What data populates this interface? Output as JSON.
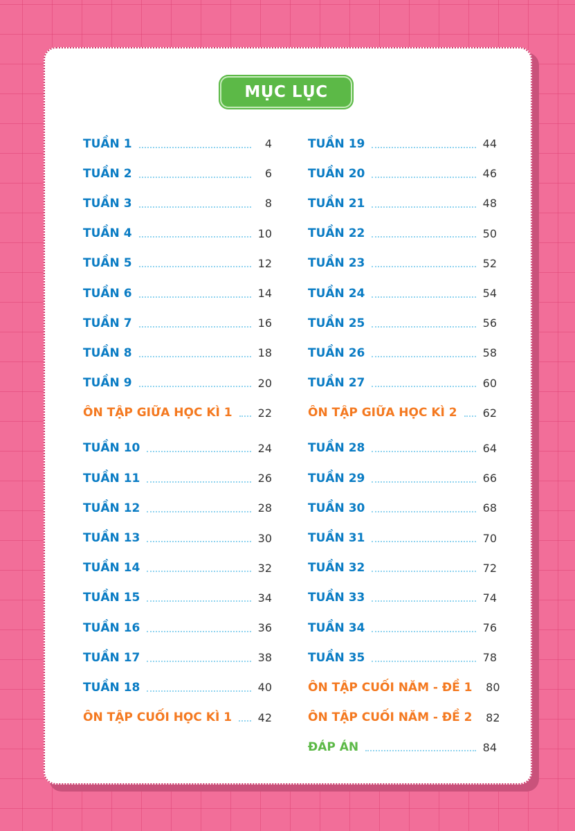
{
  "title": "MỤC LỤC",
  "colors": {
    "week": "#0a7cc4",
    "review": "#f47920",
    "answers": "#5cb947",
    "background": "#f26e99"
  },
  "left_column": [
    {
      "label": "TUẦN 1",
      "page": "4",
      "type": "week"
    },
    {
      "label": "TUẦN 2",
      "page": "6",
      "type": "week"
    },
    {
      "label": "TUẦN 3",
      "page": "8",
      "type": "week"
    },
    {
      "label": "TUẦN 4",
      "page": "10",
      "type": "week"
    },
    {
      "label": "TUẦN 5",
      "page": "12",
      "type": "week"
    },
    {
      "label": "TUẦN 6",
      "page": "14",
      "type": "week"
    },
    {
      "label": "TUẦN 7",
      "page": "16",
      "type": "week"
    },
    {
      "label": "TUẦN 8",
      "page": "18",
      "type": "week"
    },
    {
      "label": "TUẦN 9",
      "page": "20",
      "type": "week"
    },
    {
      "label": "ÔN TẬP GIỮA HỌC KÌ 1",
      "page": "22",
      "type": "review"
    },
    {
      "label": "TUẦN 10",
      "page": "24",
      "type": "week"
    },
    {
      "label": "TUẦN 11",
      "page": "26",
      "type": "week"
    },
    {
      "label": "TUẦN 12",
      "page": "28",
      "type": "week"
    },
    {
      "label": "TUẦN 13",
      "page": "30",
      "type": "week"
    },
    {
      "label": "TUẦN 14",
      "page": "32",
      "type": "week"
    },
    {
      "label": "TUẦN 15",
      "page": "34",
      "type": "week"
    },
    {
      "label": "TUẦN 16",
      "page": "36",
      "type": "week"
    },
    {
      "label": "TUẦN 17",
      "page": "38",
      "type": "week"
    },
    {
      "label": "TUẦN 18",
      "page": "40",
      "type": "week"
    },
    {
      "label": "ÔN TẬP CUỐI HỌC KÌ 1",
      "page": "42",
      "type": "review"
    }
  ],
  "right_column": [
    {
      "label": "TUẦN 19",
      "page": "44",
      "type": "week"
    },
    {
      "label": "TUẦN 20",
      "page": "46",
      "type": "week"
    },
    {
      "label": "TUẦN 21",
      "page": "48",
      "type": "week"
    },
    {
      "label": "TUẦN 22",
      "page": "50",
      "type": "week"
    },
    {
      "label": "TUẦN 23",
      "page": "52",
      "type": "week"
    },
    {
      "label": "TUẦN 24",
      "page": "54",
      "type": "week"
    },
    {
      "label": "TUẦN 25",
      "page": "56",
      "type": "week"
    },
    {
      "label": "TUẦN 26",
      "page": "58",
      "type": "week"
    },
    {
      "label": "TUẦN 27",
      "page": "60",
      "type": "week"
    },
    {
      "label": "ÔN TẬP GIỮA HỌC KÌ 2",
      "page": "62",
      "type": "review"
    },
    {
      "label": "TUẦN 28",
      "page": "64",
      "type": "week"
    },
    {
      "label": "TUẦN 29",
      "page": "66",
      "type": "week"
    },
    {
      "label": "TUẦN 30",
      "page": "68",
      "type": "week"
    },
    {
      "label": "TUẦN 31",
      "page": "70",
      "type": "week"
    },
    {
      "label": "TUẦN 32",
      "page": "72",
      "type": "week"
    },
    {
      "label": "TUẦN 33",
      "page": "74",
      "type": "week"
    },
    {
      "label": "TUẦN 34",
      "page": "76",
      "type": "week"
    },
    {
      "label": "TUẦN 35",
      "page": "78",
      "type": "week"
    },
    {
      "label": "ÔN TẬP CUỐI NĂM - ĐỀ 1",
      "page": "80",
      "type": "review"
    },
    {
      "label": "ÔN TẬP CUỐI NĂM - ĐỀ 2",
      "page": "82",
      "type": "review"
    },
    {
      "label": "ĐÁP ÁN",
      "page": "84",
      "type": "answers"
    }
  ]
}
